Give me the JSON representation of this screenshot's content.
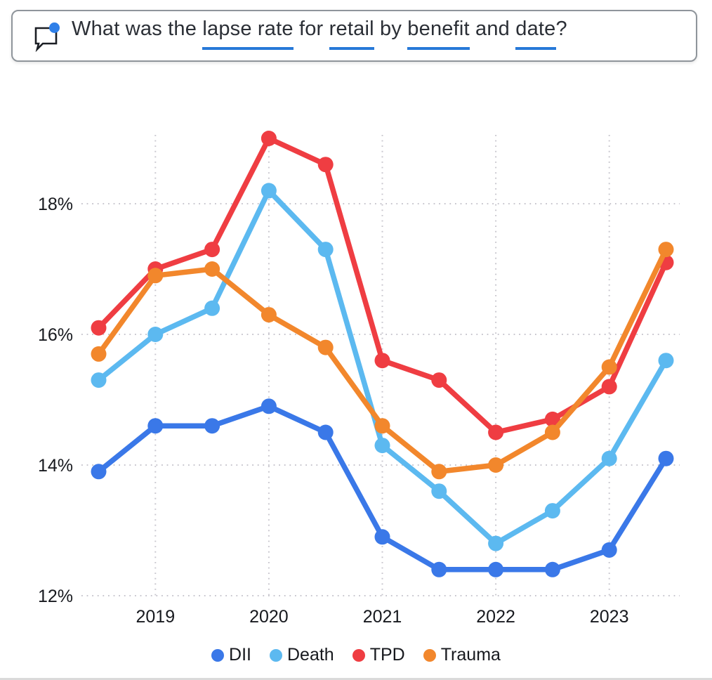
{
  "question": {
    "icon": "speech-bubble-with-notification-dot",
    "accent_color": "#2779d8",
    "segments": [
      {
        "text": "What was the ",
        "underline": false
      },
      {
        "text": "lapse rate",
        "underline": true
      },
      {
        "text": " for ",
        "underline": false
      },
      {
        "text": "retail",
        "underline": true
      },
      {
        "text": " by ",
        "underline": false
      },
      {
        "text": "benefit",
        "underline": true
      },
      {
        "text": " and ",
        "underline": false
      },
      {
        "text": "date",
        "underline": true
      },
      {
        "text": "?",
        "underline": false
      }
    ]
  },
  "chart_data": {
    "type": "line",
    "title": "",
    "xlabel": "",
    "ylabel": "",
    "x": [
      2018.5,
      2019,
      2019.5,
      2020,
      2020.5,
      2021,
      2021.5,
      2022,
      2022.5,
      2023,
      2023.5
    ],
    "x_tick_values": [
      2019,
      2020,
      2021,
      2022,
      2023
    ],
    "x_tick_labels": [
      "2019",
      "2020",
      "2021",
      "2022",
      "2023"
    ],
    "y_tick_values": [
      12,
      14,
      16,
      18
    ],
    "y_tick_labels": [
      "12%",
      "14%",
      "16%",
      "18%"
    ],
    "ylim": [
      12,
      19.1
    ],
    "grid": "dotted",
    "marker": "circle",
    "legend_position": "bottom",
    "series": [
      {
        "name": "DII",
        "color": "#3a78e8",
        "values": [
          13.9,
          14.6,
          14.6,
          14.9,
          14.5,
          12.9,
          12.4,
          12.4,
          12.4,
          12.7,
          14.1
        ]
      },
      {
        "name": "Death",
        "color": "#5cb9f0",
        "values": [
          15.3,
          16.0,
          16.4,
          18.2,
          17.3,
          14.3,
          13.6,
          12.8,
          13.3,
          14.1,
          15.6
        ]
      },
      {
        "name": "TPD",
        "color": "#ef3d42",
        "values": [
          16.1,
          17.0,
          17.3,
          19.0,
          18.6,
          15.6,
          15.3,
          14.5,
          14.7,
          15.2,
          17.1
        ]
      },
      {
        "name": "Trauma",
        "color": "#f2872c",
        "values": [
          15.7,
          16.9,
          17.0,
          16.3,
          15.8,
          14.6,
          13.9,
          14.0,
          14.5,
          15.5,
          17.3
        ]
      }
    ]
  }
}
